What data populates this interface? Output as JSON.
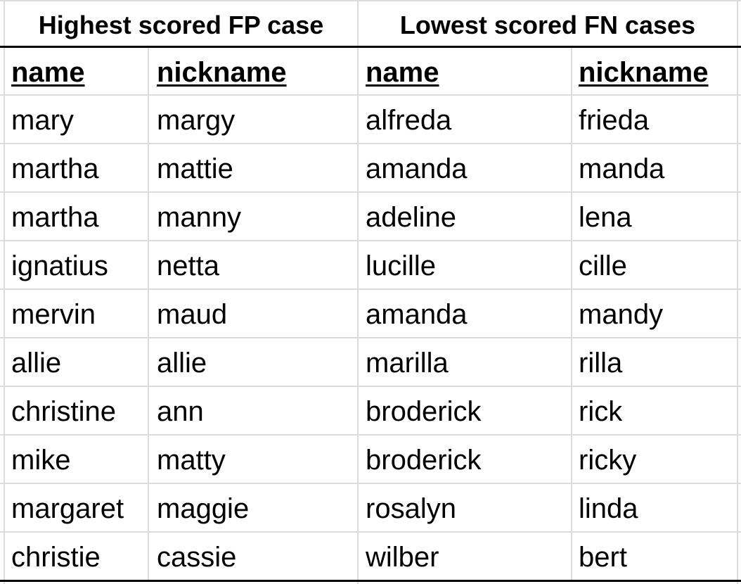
{
  "table": {
    "groups": [
      {
        "title": "Highest scored FP case"
      },
      {
        "title": "Lowest scored FN cases"
      }
    ],
    "columns": [
      "name",
      "nickname",
      "name",
      "nickname"
    ],
    "rows": [
      [
        "mary",
        "margy",
        "alfreda",
        "frieda"
      ],
      [
        "martha",
        "mattie",
        "amanda",
        "manda"
      ],
      [
        "martha",
        "manny",
        "adeline",
        "lena"
      ],
      [
        "ignatius",
        "netta",
        "lucille",
        "cille"
      ],
      [
        "mervin",
        "maud",
        "amanda",
        "mandy"
      ],
      [
        "allie",
        "allie",
        "marilla",
        "rilla"
      ],
      [
        "christine",
        "ann",
        "broderick",
        "rick"
      ],
      [
        "mike",
        "matty",
        "broderick",
        "ricky"
      ],
      [
        "margaret",
        "maggie",
        "rosalyn",
        "linda"
      ],
      [
        "christie",
        "cassie",
        "wilber",
        "bert"
      ]
    ]
  }
}
